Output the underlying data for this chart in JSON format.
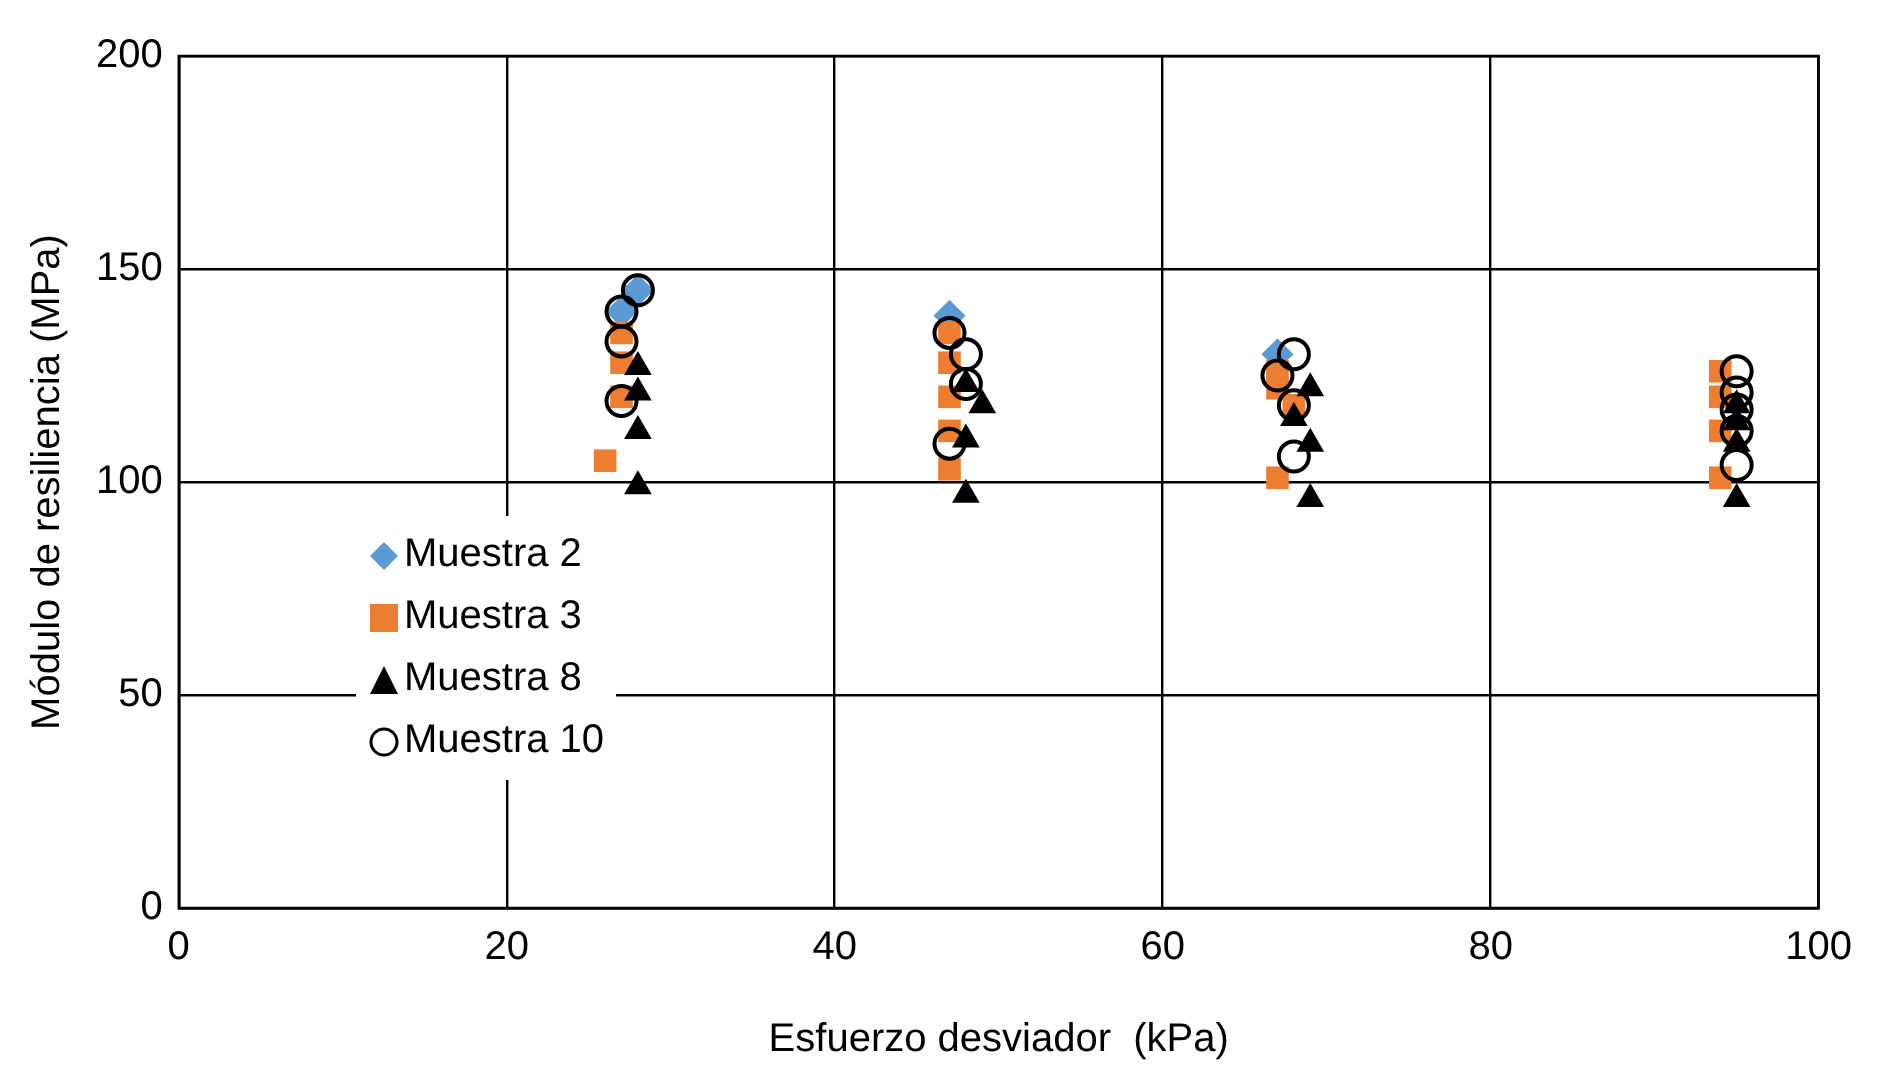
{
  "chart_data": {
    "type": "scatter",
    "xlabel": "Esfuerzo desviador  (kPa)",
    "ylabel": "Módulo de resiliencia (MPa)",
    "xlim": [
      0,
      100
    ],
    "xticks": [
      0,
      20,
      40,
      60,
      80,
      100
    ],
    "ylim": [
      0,
      200
    ],
    "yticks": [
      0,
      50,
      100,
      150,
      200
    ],
    "grid": true,
    "legend": "bottom left",
    "series": [
      {
        "name": "Muestra 2",
        "color": "#5b9bd5",
        "marker": "diamond",
        "x": [
          28,
          27,
          47,
          67
        ],
        "values": [
          145,
          140,
          139,
          130
        ]
      },
      {
        "name": "Muestra 3",
        "color": "#ed7d31",
        "marker": "square",
        "x": [
          26,
          27,
          27,
          27,
          47,
          47,
          47,
          47,
          47,
          67,
          67,
          67,
          68,
          94,
          94,
          94,
          94
        ],
        "values": [
          105,
          135,
          128,
          120,
          135,
          128,
          120,
          112,
          103,
          126,
          122,
          101,
          118,
          126,
          120,
          112,
          101
        ]
      },
      {
        "name": "Muestra 8",
        "color": "#000000",
        "marker": "triangle",
        "x": [
          28,
          28,
          28,
          28,
          48,
          49,
          48,
          48,
          69,
          68,
          69,
          69,
          95,
          95,
          95,
          95
        ],
        "values": [
          127,
          121,
          112,
          99,
          123,
          118,
          110,
          97,
          122,
          115,
          109,
          96,
          118,
          114,
          109,
          96
        ]
      },
      {
        "name": "Muestra 10",
        "color": "#000000",
        "marker": "circle",
        "x": [
          28,
          27,
          27,
          27,
          47,
          48,
          48,
          47,
          68,
          67,
          68,
          68,
          95,
          95,
          95,
          95,
          95
        ],
        "values": [
          145,
          140,
          133,
          119,
          135,
          130,
          123,
          109,
          130,
          125,
          118,
          106,
          126,
          121,
          117,
          112,
          104
        ]
      }
    ]
  }
}
